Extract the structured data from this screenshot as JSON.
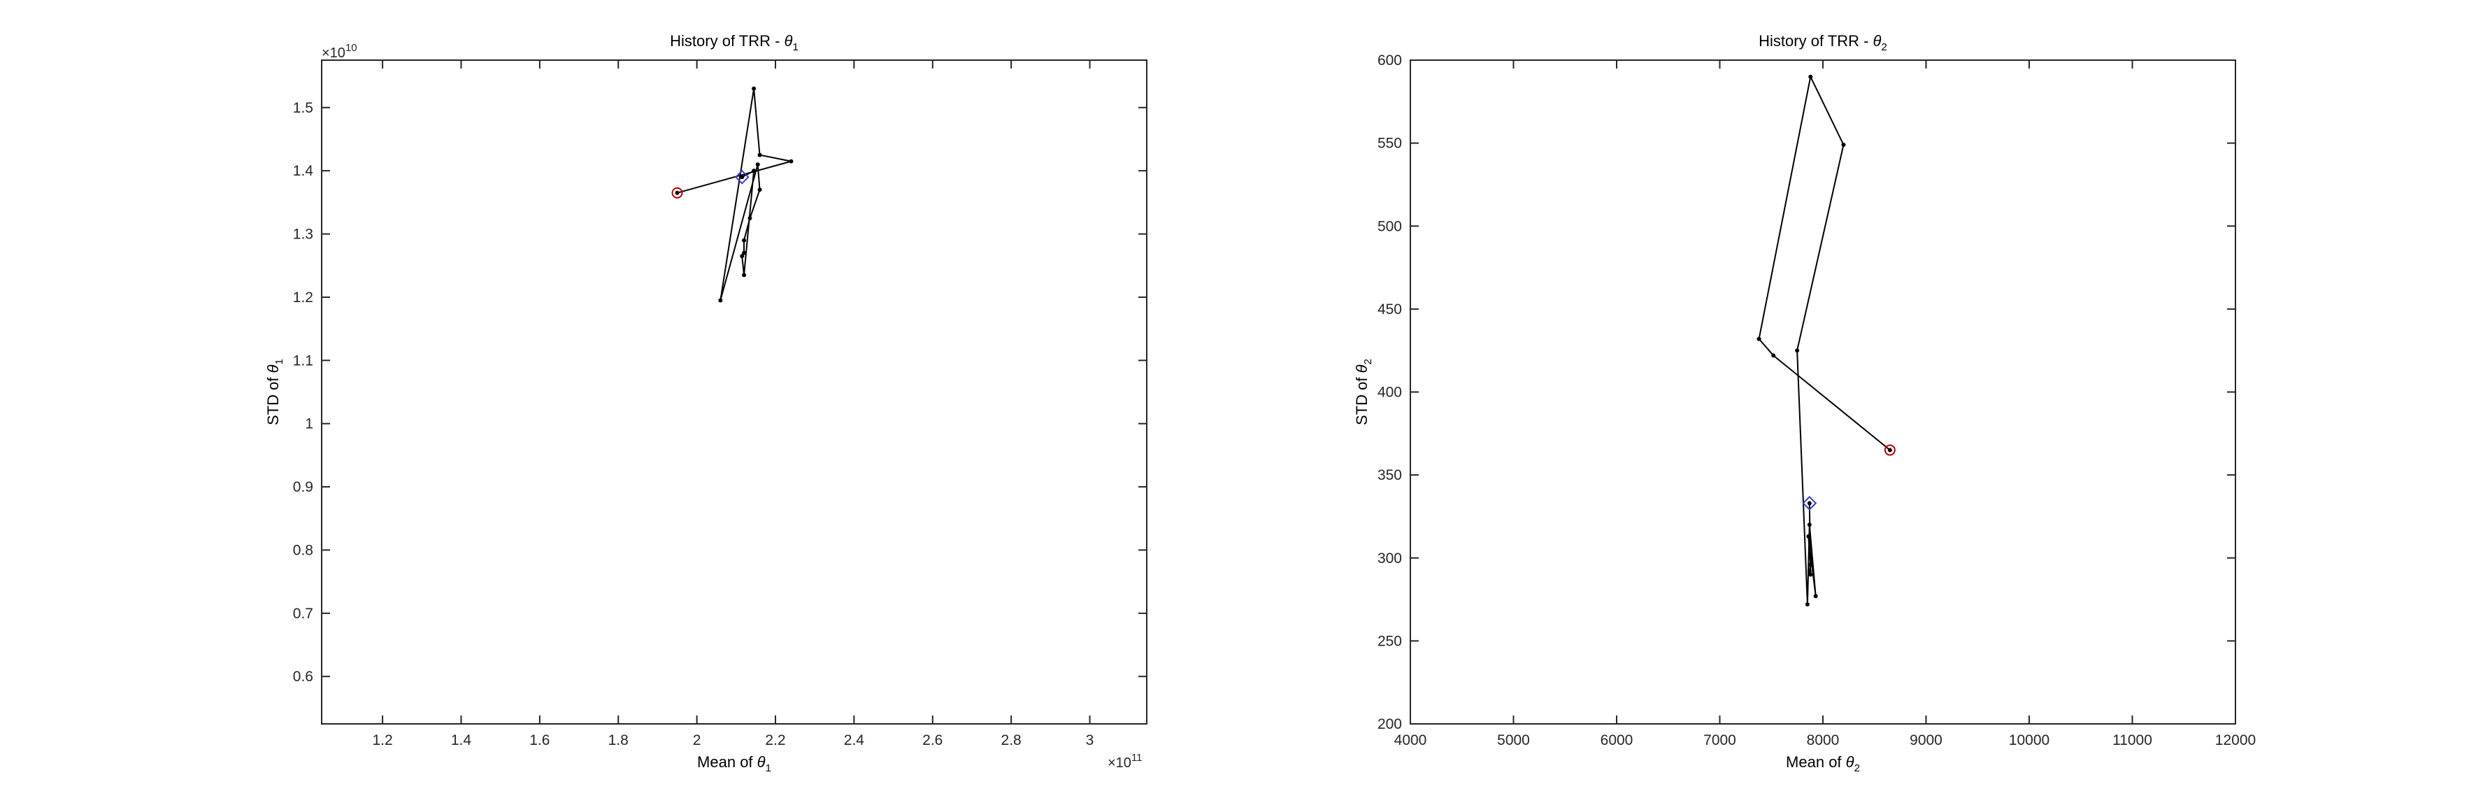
{
  "chart_data": [
    {
      "type": "line",
      "title": "History of TRR - ",
      "title_sym": "θ",
      "title_sub": "1",
      "xlabel": "Mean of ",
      "xlabel_sym": "θ",
      "xlabel_sub": "1",
      "ylabel": "STD of ",
      "ylabel_sym": "θ",
      "ylabel_sub": "1",
      "x_exponent_base": "×10",
      "x_exponent_power": "11",
      "y_exponent_base": "×10",
      "y_exponent_power": "10",
      "xlim": [
        1.045,
        3.145
      ],
      "ylim": [
        0.525,
        1.575
      ],
      "xticks": [
        1.2,
        1.4,
        1.6,
        1.8,
        2.0,
        2.2,
        2.4,
        2.6,
        2.8,
        3.0
      ],
      "xtick_labels": [
        "1.2",
        "1.4",
        "1.6",
        "1.8",
        "2",
        "2.2",
        "2.4",
        "2.6",
        "2.8",
        "3"
      ],
      "yticks": [
        0.6,
        0.7,
        0.8,
        0.9,
        1.0,
        1.1,
        1.2,
        1.3,
        1.4,
        1.5
      ],
      "ytick_labels": [
        "0.6",
        "0.7",
        "0.8",
        "0.9",
        "1",
        "1.1",
        "1.2",
        "1.3",
        "1.4",
        "1.5"
      ],
      "grid": false,
      "start_marker_color": "#c00000",
      "end_marker_color": "#3c3cc8",
      "series": [
        {
          "x": [
            1.95,
            2.24,
            2.16,
            2.145,
            2.06,
            2.155,
            2.16,
            2.135,
            2.12,
            2.12,
            2.115,
            2.12,
            2.145,
            2.115
          ],
          "y": [
            1.365,
            1.415,
            1.425,
            1.53,
            1.195,
            1.41,
            1.37,
            1.325,
            1.29,
            1.27,
            1.265,
            1.235,
            1.4,
            1.39
          ]
        }
      ]
    },
    {
      "type": "line",
      "title": "History of TRR - ",
      "title_sym": "θ",
      "title_sub": "2",
      "xlabel": "Mean of ",
      "xlabel_sym": "θ",
      "xlabel_sub": "2",
      "ylabel": "STD of ",
      "ylabel_sym": "θ",
      "ylabel_sub": "2",
      "xlim": [
        4000,
        12000
      ],
      "ylim": [
        200,
        600
      ],
      "xticks": [
        4000,
        5000,
        6000,
        7000,
        8000,
        9000,
        10000,
        11000,
        12000
      ],
      "xtick_labels": [
        "4000",
        "5000",
        "6000",
        "7000",
        "8000",
        "9000",
        "10000",
        "11000",
        "12000"
      ],
      "yticks": [
        200,
        250,
        300,
        350,
        400,
        450,
        500,
        550,
        600
      ],
      "ytick_labels": [
        "200",
        "250",
        "300",
        "350",
        "400",
        "450",
        "500",
        "550",
        "600"
      ],
      "grid": false,
      "start_marker_color": "#c00000",
      "end_marker_color": "#3c3cc8",
      "series": [
        {
          "x": [
            8650,
            7520,
            7380,
            7880,
            8200,
            7750,
            7850,
            7870,
            7930,
            7860,
            7880,
            7870,
            7880,
            7870
          ],
          "y": [
            365,
            422,
            432,
            590,
            549,
            425,
            272,
            320,
            277,
            313,
            296,
            292,
            290,
            333
          ]
        }
      ]
    }
  ]
}
